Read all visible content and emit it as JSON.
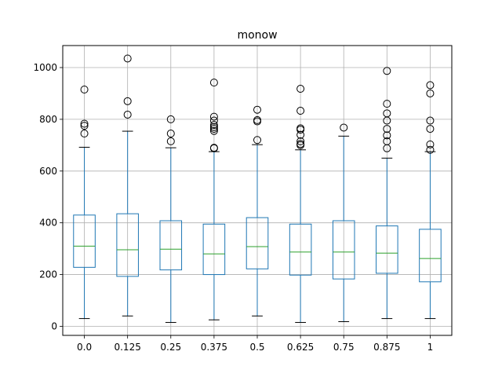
{
  "chart_data": {
    "type": "box",
    "title": "monow",
    "xlabel": "",
    "ylabel": "",
    "grid": true,
    "ylim": [
      -35,
      1085
    ],
    "yticks": [
      0,
      200,
      400,
      600,
      800,
      1000
    ],
    "categories": [
      "0.0",
      "0.125",
      "0.25",
      "0.375",
      "0.5",
      "0.625",
      "0.75",
      "0.875",
      "1"
    ],
    "boxes": [
      {
        "category": "0.0",
        "whisker_low": 30,
        "q1": 228,
        "median": 310,
        "q3": 430,
        "whisker_high": 692,
        "outliers": [
          745,
          775,
          783,
          915
        ]
      },
      {
        "category": "0.125",
        "whisker_low": 40,
        "q1": 193,
        "median": 296,
        "q3": 435,
        "whisker_high": 754,
        "outliers": [
          818,
          870,
          1035
        ]
      },
      {
        "category": "0.25",
        "whisker_low": 15,
        "q1": 218,
        "median": 298,
        "q3": 408,
        "whisker_high": 690,
        "outliers": [
          715,
          745,
          800
        ]
      },
      {
        "category": "0.375",
        "whisker_low": 25,
        "q1": 200,
        "median": 280,
        "q3": 395,
        "whisker_high": 675,
        "outliers": [
          688,
          690,
          755,
          763,
          770,
          778,
          795,
          810,
          942
        ]
      },
      {
        "category": "0.5",
        "whisker_low": 40,
        "q1": 222,
        "median": 308,
        "q3": 420,
        "whisker_high": 702,
        "outliers": [
          720,
          792,
          797,
          837
        ]
      },
      {
        "category": "0.625",
        "whisker_low": 15,
        "q1": 198,
        "median": 287,
        "q3": 395,
        "whisker_high": 682,
        "outliers": [
          700,
          705,
          715,
          740,
          760,
          765,
          833,
          918
        ]
      },
      {
        "category": "0.75",
        "whisker_low": 18,
        "q1": 183,
        "median": 287,
        "q3": 408,
        "whisker_high": 735,
        "outliers": [
          768
        ]
      },
      {
        "category": "0.875",
        "whisker_low": 30,
        "q1": 205,
        "median": 283,
        "q3": 388,
        "whisker_high": 650,
        "outliers": [
          688,
          715,
          738,
          763,
          795,
          823,
          860,
          987
        ]
      },
      {
        "category": "1",
        "whisker_low": 30,
        "q1": 172,
        "median": 262,
        "q3": 375,
        "whisker_high": 675,
        "outliers": [
          682,
          703,
          763,
          795,
          900,
          932
        ]
      }
    ],
    "colors": {
      "box": "#1f77b4",
      "median": "#2ca02c",
      "whisker": "#1f77b4",
      "cap": "#000000",
      "outlier": "#000000",
      "grid": "#b0b0b0"
    }
  }
}
